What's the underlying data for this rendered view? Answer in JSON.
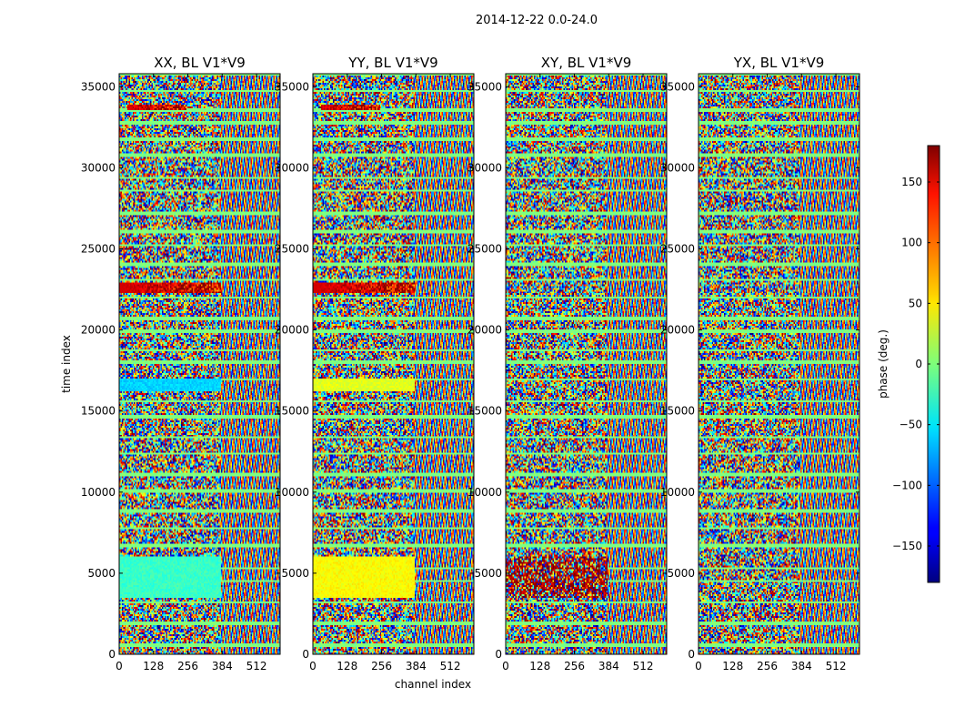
{
  "chart_data": {
    "type": "heatmap",
    "title": "2014-12-22 0.0-24.0",
    "xlabel": "channel index",
    "ylabel": "time index",
    "xlim": [
      0,
      600
    ],
    "ylim": [
      0,
      35800
    ],
    "xticks": [
      0,
      128,
      256,
      384,
      512
    ],
    "yticks": [
      0,
      5000,
      10000,
      15000,
      20000,
      25000,
      30000,
      35000
    ],
    "panels": [
      {
        "title": "XX, BL V1*V9",
        "key": "XX"
      },
      {
        "title": "YY, BL V1*V9",
        "key": "YY"
      },
      {
        "title": "XY, BL V1*V9",
        "key": "XY"
      },
      {
        "title": "YX, BL V1*V9",
        "key": "YX"
      }
    ],
    "colorbar": {
      "label": "phase (deg.)",
      "range": [
        -180,
        180
      ],
      "ticks": [
        150,
        100,
        50,
        0,
        -50,
        -100,
        -150
      ],
      "tick_labels": [
        "150",
        "100",
        "50",
        "0",
        "−50",
        "−100",
        "−150"
      ],
      "colormap": "jet"
    },
    "features": [
      {
        "panels": [
          "XX",
          "YY"
        ],
        "time_range": [
          33600,
          33950
        ],
        "channel_range": [
          30,
          250
        ],
        "phase": 150,
        "style": "streak"
      },
      {
        "panels": [
          "XX",
          "YY"
        ],
        "time_range": [
          22300,
          22950
        ],
        "channel_range": [
          0,
          380
        ],
        "phase": 150,
        "style": "streak"
      },
      {
        "panels": [
          "XX"
        ],
        "time_range": [
          16200,
          17000
        ],
        "channel_range": [
          0,
          380
        ],
        "phase": -60,
        "style": "band"
      },
      {
        "panels": [
          "YY"
        ],
        "time_range": [
          16200,
          17000
        ],
        "channel_range": [
          0,
          380
        ],
        "phase": 35,
        "style": "band"
      },
      {
        "panels": [
          "XX"
        ],
        "time_range": [
          3500,
          6000
        ],
        "channel_range": [
          0,
          380
        ],
        "phase": -25,
        "style": "band"
      },
      {
        "panels": [
          "YY"
        ],
        "time_range": [
          3500,
          6000
        ],
        "channel_range": [
          0,
          380
        ],
        "phase": 45,
        "style": "band"
      },
      {
        "panels": [
          "XY"
        ],
        "time_range": [
          3500,
          6000
        ],
        "channel_range": [
          0,
          380
        ],
        "phase": 170,
        "style": "noisy"
      }
    ],
    "flagged_rows_phase": 0
  }
}
